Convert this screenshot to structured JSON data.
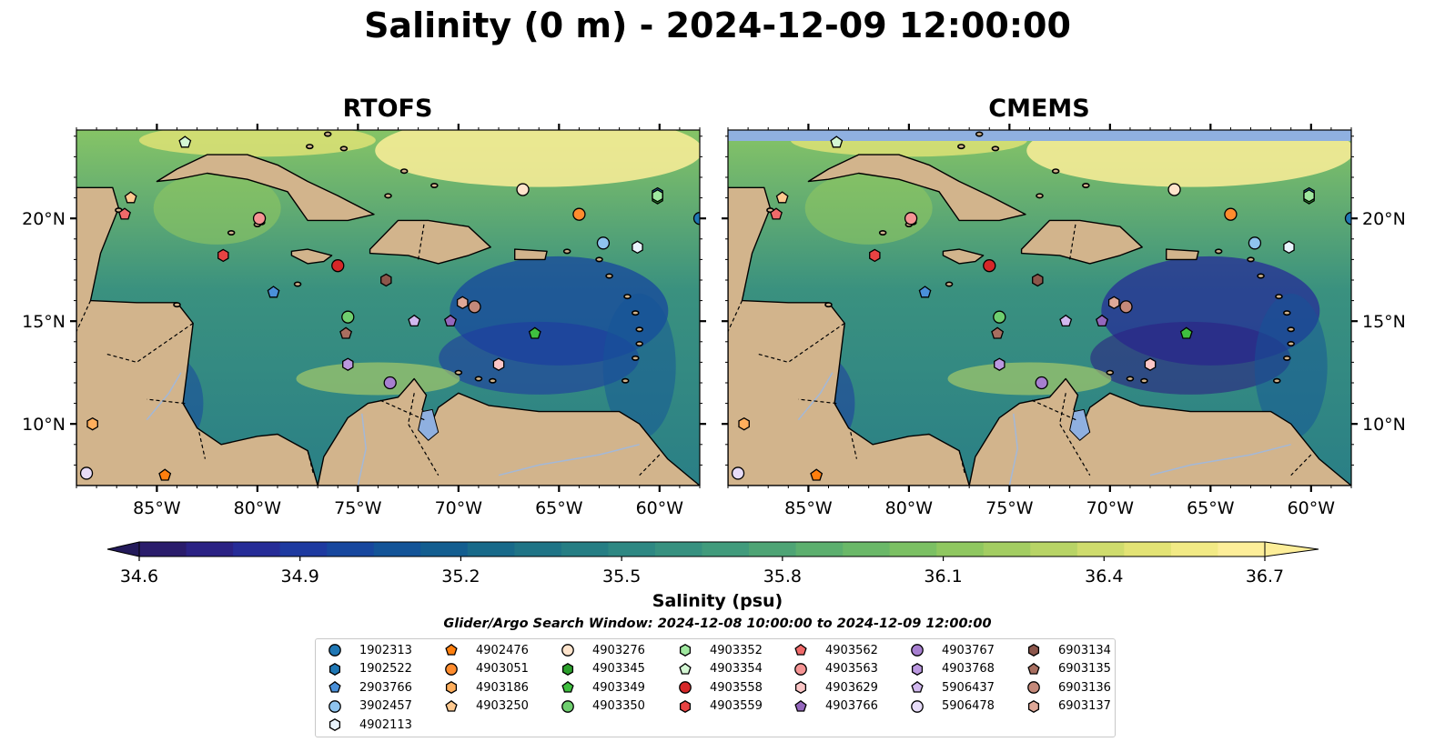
{
  "title": "Salinity (0 m) - 2024-12-09 12:00:00",
  "panels": [
    {
      "id": "rtofs",
      "title": "RTOFS"
    },
    {
      "id": "cmems",
      "title": "CMEMS"
    }
  ],
  "map": {
    "extent": {
      "lon": [
        -89,
        -58
      ],
      "lat": [
        7,
        24.3
      ]
    },
    "lon_ticks": [
      -85,
      -80,
      -75,
      -70,
      -65,
      -60
    ],
    "lon_tick_labels": [
      "85°W",
      "80°W",
      "75°W",
      "70°W",
      "65°W",
      "60°W"
    ],
    "lat_ticks": [
      10,
      15,
      20
    ],
    "lat_tick_labels": [
      "10°N",
      "15°N",
      "20°N"
    ],
    "land_color": "#d2b48c",
    "water_feature_color": "#8fb0e0"
  },
  "colorbar": {
    "min": 34.6,
    "max": 36.7,
    "step": 0.075,
    "ticks": [
      "34.6",
      "34.9",
      "35.2",
      "35.5",
      "35.8",
      "36.1",
      "36.4",
      "36.7"
    ],
    "label": "Salinity (psu)",
    "extend": "both",
    "colormap": "haline",
    "colors": [
      "#2a1c6b",
      "#2b2284",
      "#262c97",
      "#1e3aa0",
      "#17479e",
      "#135498",
      "#135e90",
      "#186a8a",
      "#1f7486",
      "#267e84",
      "#2e8883",
      "#379180",
      "#419b7c",
      "#4ea475",
      "#5caf6e",
      "#6ab868",
      "#7bc063",
      "#8fc760",
      "#a3cd62",
      "#b8d466",
      "#cfdc6d",
      "#e3e375",
      "#f2ea85",
      "#fdee99"
    ]
  },
  "search_window": "Glider/Argo Search Window: 2024-12-08 10:00:00 to 2024-12-09 12:00:00",
  "legend": [
    {
      "id": "1902313",
      "marker": "circle",
      "color": "#1f77b4"
    },
    {
      "id": "1902522",
      "marker": "hexagon",
      "color": "#1f77b4"
    },
    {
      "id": "2903766",
      "marker": "pentagon",
      "color": "#4a90d9"
    },
    {
      "id": "3902457",
      "marker": "circle",
      "color": "#8fc4ee"
    },
    {
      "id": "4902113",
      "marker": "hexagon",
      "color": "#e8f3fc"
    },
    {
      "id": "4902476",
      "marker": "pentagon",
      "color": "#ff7f0e"
    },
    {
      "id": "4903051",
      "marker": "circle",
      "color": "#ff8c2e"
    },
    {
      "id": "4903186",
      "marker": "hexagon",
      "color": "#ffae5c"
    },
    {
      "id": "4903250",
      "marker": "pentagon",
      "color": "#ffc98f"
    },
    {
      "id": "4903276",
      "marker": "circle",
      "color": "#ffe4cc"
    },
    {
      "id": "4903345",
      "marker": "hexagon",
      "color": "#2ca02c"
    },
    {
      "id": "4903349",
      "marker": "pentagon",
      "color": "#3fbf3f"
    },
    {
      "id": "4903350",
      "marker": "circle",
      "color": "#6fcf6f"
    },
    {
      "id": "4903352",
      "marker": "hexagon",
      "color": "#9fe89f"
    },
    {
      "id": "4903354",
      "marker": "pentagon",
      "color": "#d4f7d4"
    },
    {
      "id": "4903558",
      "marker": "circle",
      "color": "#d62728"
    },
    {
      "id": "4903559",
      "marker": "hexagon",
      "color": "#e84343"
    },
    {
      "id": "4903562",
      "marker": "pentagon",
      "color": "#f06a6a"
    },
    {
      "id": "4903563",
      "marker": "circle",
      "color": "#f59494"
    },
    {
      "id": "4903629",
      "marker": "hexagon",
      "color": "#fbc6c6"
    },
    {
      "id": "4903766",
      "marker": "pentagon",
      "color": "#9467bd"
    },
    {
      "id": "4903767",
      "marker": "circle",
      "color": "#a77fd0"
    },
    {
      "id": "4903768",
      "marker": "hexagon",
      "color": "#bb98e0"
    },
    {
      "id": "5906437",
      "marker": "pentagon",
      "color": "#d1b8ee"
    },
    {
      "id": "5906478",
      "marker": "circle",
      "color": "#e7dcf8"
    },
    {
      "id": "6903134",
      "marker": "hexagon",
      "color": "#8c564b"
    },
    {
      "id": "6903135",
      "marker": "pentagon",
      "color": "#a86e60"
    },
    {
      "id": "6903136",
      "marker": "circle",
      "color": "#c4897a"
    },
    {
      "id": "6903137",
      "marker": "hexagon",
      "color": "#dea898"
    }
  ],
  "observations": [
    {
      "id": "1902313",
      "lon": -58.0,
      "lat": 20.0
    },
    {
      "id": "1902522",
      "lon": -60.1,
      "lat": 21.2
    },
    {
      "id": "2903766",
      "lon": -79.2,
      "lat": 16.4
    },
    {
      "id": "3902457",
      "lon": -62.8,
      "lat": 18.8
    },
    {
      "id": "4902113",
      "lon": -61.1,
      "lat": 18.6
    },
    {
      "id": "4902476",
      "lon": -84.6,
      "lat": 7.5
    },
    {
      "id": "4903051",
      "lon": -64.0,
      "lat": 20.2
    },
    {
      "id": "4903186",
      "lon": -88.2,
      "lat": 10.0
    },
    {
      "id": "4903250",
      "lon": -86.3,
      "lat": 21.0
    },
    {
      "id": "4903276",
      "lon": -66.8,
      "lat": 21.4
    },
    {
      "id": "4903345",
      "lon": -60.1,
      "lat": 21.0
    },
    {
      "id": "4903349",
      "lon": -66.2,
      "lat": 14.4
    },
    {
      "id": "4903350",
      "lon": -75.5,
      "lat": 15.2
    },
    {
      "id": "4903352",
      "lon": -60.1,
      "lat": 21.1
    },
    {
      "id": "4903354",
      "lon": -83.6,
      "lat": 23.7
    },
    {
      "id": "4903558",
      "lon": -76.0,
      "lat": 17.7
    },
    {
      "id": "4903559",
      "lon": -81.7,
      "lat": 18.2
    },
    {
      "id": "4903562",
      "lon": -86.6,
      "lat": 20.2
    },
    {
      "id": "4903563",
      "lon": -79.9,
      "lat": 20.0
    },
    {
      "id": "4903629",
      "lon": -68.0,
      "lat": 12.9
    },
    {
      "id": "4903766",
      "lon": -70.4,
      "lat": 15.0
    },
    {
      "id": "4903767",
      "lon": -73.4,
      "lat": 12.0
    },
    {
      "id": "4903768",
      "lon": -75.5,
      "lat": 12.9
    },
    {
      "id": "5906437",
      "lon": -72.2,
      "lat": 15.0
    },
    {
      "id": "5906478",
      "lon": -88.5,
      "lat": 7.6
    },
    {
      "id": "6903134",
      "lon": -73.6,
      "lat": 17.0
    },
    {
      "id": "6903135",
      "lon": -75.6,
      "lat": 14.4
    },
    {
      "id": "6903136",
      "lon": -69.2,
      "lat": 15.7
    },
    {
      "id": "6903137",
      "lon": -69.8,
      "lat": 15.9
    }
  ]
}
